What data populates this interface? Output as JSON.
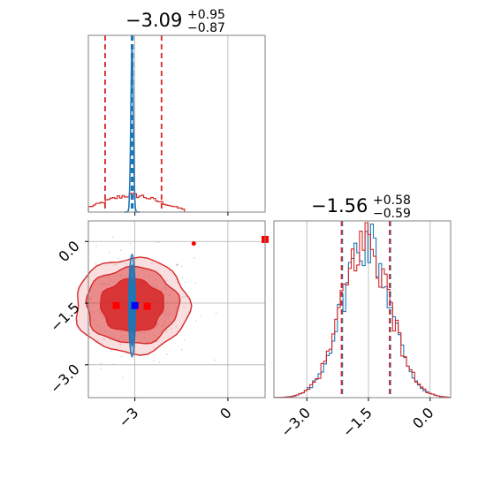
{
  "chart_data": {
    "type": "corner",
    "colors": {
      "red": "#d62728",
      "blue": "#1f77b4",
      "marker_red": "#ff0000",
      "marker_blue": "#0000ff",
      "grid": "#b0b0b0",
      "frame": "#808080"
    },
    "titles": {
      "p1": {
        "median": "−3.09",
        "plus": "+0.95",
        "minus": "−0.87"
      },
      "p2": {
        "median": "−1.56",
        "plus": "+0.58",
        "minus": "−0.59"
      }
    },
    "axes": {
      "p1_range": [
        -4.5,
        1.2
      ],
      "p2_range": [
        -3.8,
        0.5
      ],
      "p1_ticks": [
        -3,
        0
      ],
      "p1_tick_labels": [
        "−3",
        "0"
      ],
      "p2_ticks": [
        -3.0,
        -1.5,
        0.0
      ],
      "p2_tick_labels": [
        "−3.0",
        "−1.5",
        "0.0"
      ]
    },
    "p1_hist": {
      "red_quantiles": [
        -3.96,
        -3.09,
        -2.14
      ],
      "blue_quantiles": [
        -3.11,
        -3.09,
        -3.06
      ],
      "red_sigma": 0.9,
      "blue_sigma": 0.04
    },
    "p2_hist": {
      "red_quantiles": [
        -2.15,
        -1.56,
        -0.98
      ],
      "blue_quantiles": [
        -2.15,
        -1.56,
        -0.98
      ],
      "sigma": 0.58
    },
    "scatter2d": {
      "red_center": [
        -3.09,
        -1.56
      ],
      "red_sigma": [
        0.85,
        0.58
      ],
      "blue_center": [
        -3.09,
        -1.56
      ],
      "blue_sigma": [
        0.05,
        0.58
      ],
      "markers": {
        "blue_square": [
          -3.0,
          -1.56
        ],
        "red_squares": [
          [
            -3.6,
            -1.56
          ],
          [
            -2.6,
            -1.58
          ],
          [
            1.2,
            0.05
          ]
        ],
        "red_dot": [
          -1.1,
          -0.05
        ]
      }
    }
  }
}
